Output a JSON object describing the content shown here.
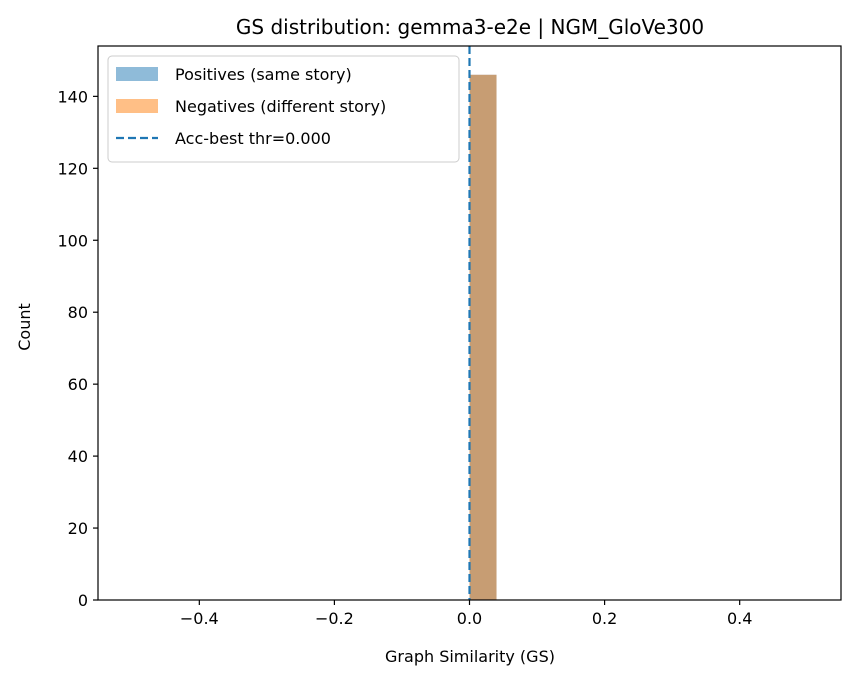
{
  "chart_data": {
    "type": "bar",
    "title": "GS distribution: gemma3-e2e | NGM_GloVe300",
    "xlabel": "Graph Similarity (GS)",
    "ylabel": "Count",
    "xlim": [
      -0.55,
      0.55
    ],
    "ylim": [
      0,
      154
    ],
    "x_ticks": [
      -0.4,
      -0.2,
      0.0,
      0.2,
      0.4
    ],
    "x_tick_labels": [
      "−0.4",
      "−0.2",
      "0.0",
      "0.2",
      "0.4"
    ],
    "y_ticks": [
      0,
      20,
      40,
      60,
      80,
      100,
      120,
      140
    ],
    "y_tick_labels": [
      "0",
      "20",
      "40",
      "60",
      "80",
      "100",
      "120",
      "140"
    ],
    "grid": false,
    "legend_position": "top-left",
    "series": [
      {
        "name": "Positives (same story)",
        "color": "#1f77b4",
        "opacity": 0.5,
        "bins": [
          {
            "x0": 0.0,
            "x1": 0.04,
            "count": 146
          }
        ]
      },
      {
        "name": "Negatives (different story)",
        "color": "#ff7f0e",
        "opacity": 0.5,
        "bins": [
          {
            "x0": 0.0,
            "x1": 0.04,
            "count": 146
          }
        ]
      }
    ],
    "threshold": {
      "label": "Acc-best thr=0.000",
      "value": 0.0,
      "color": "#1f77b4",
      "style": "dashed"
    }
  }
}
